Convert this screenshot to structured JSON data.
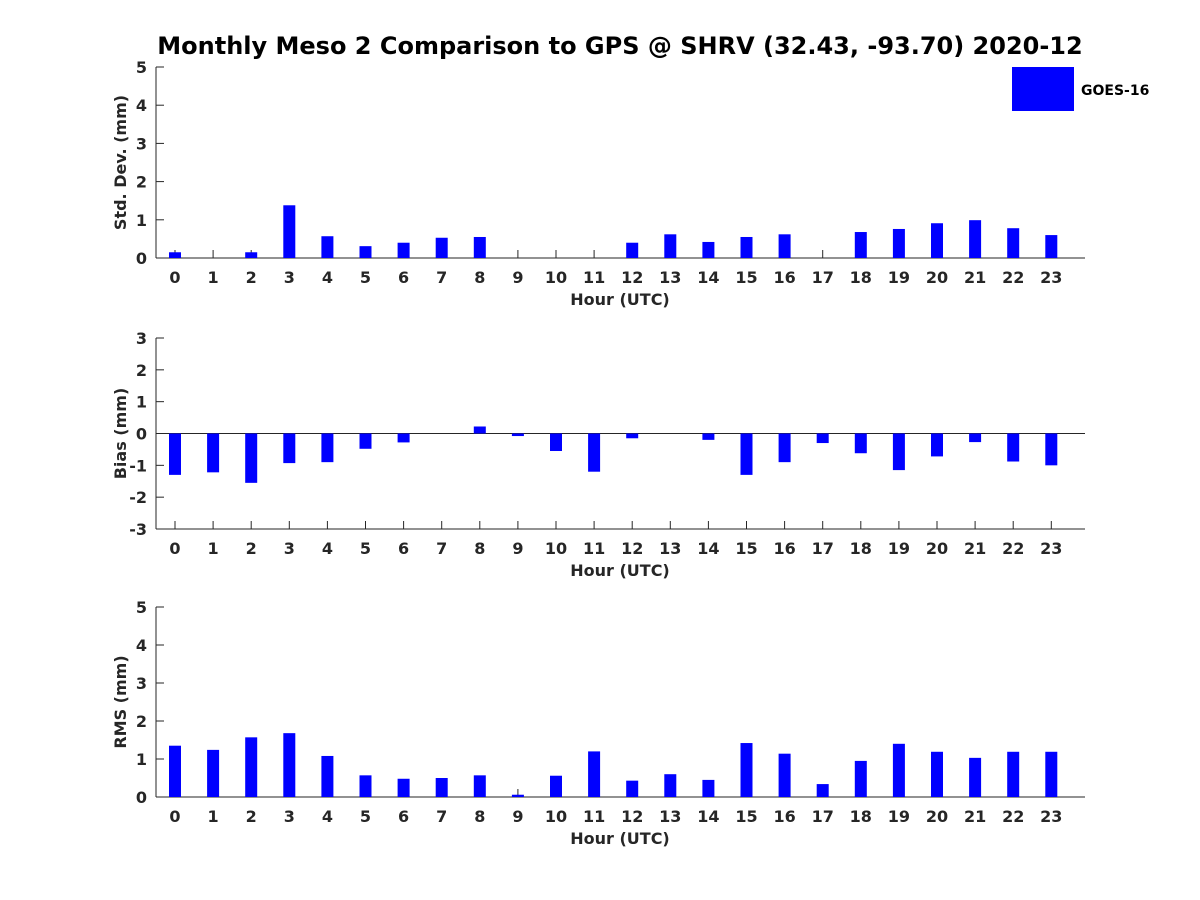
{
  "title": "Monthly Meso 2 Comparison to GPS @ SHRV (32.43, -93.70) 2020-12",
  "legend": {
    "label": "GOES-16",
    "color": "#0000ff",
    "placement": "top-right"
  },
  "chart_data": [
    {
      "type": "bar",
      "xlabel": "Hour (UTC)",
      "ylabel": "Std. Dev. (mm)",
      "ylim": [
        0,
        5
      ],
      "yticks": [
        "0",
        "1",
        "2",
        "3",
        "4",
        "5"
      ],
      "categories": [
        "0",
        "1",
        "2",
        "3",
        "4",
        "5",
        "6",
        "7",
        "8",
        "9",
        "10",
        "11",
        "12",
        "13",
        "14",
        "15",
        "16",
        "17",
        "18",
        "19",
        "20",
        "21",
        "22",
        "23"
      ],
      "series": [
        {
          "name": "GOES-16",
          "color": "#0000ff",
          "values": [
            0.15,
            0,
            0.15,
            1.38,
            0.57,
            0.31,
            0.4,
            0.53,
            0.55,
            0,
            0,
            0,
            0.4,
            0.62,
            0.42,
            0.55,
            0.62,
            0,
            0.68,
            0.76,
            0.91,
            0.99,
            0.78,
            0.6
          ]
        }
      ]
    },
    {
      "type": "bar",
      "xlabel": "Hour (UTC)",
      "ylabel": "Bias (mm)",
      "ylim": [
        -3,
        3
      ],
      "yticks": [
        "-3",
        "-2",
        "-1",
        "0",
        "1",
        "2",
        "3"
      ],
      "categories": [
        "0",
        "1",
        "2",
        "3",
        "4",
        "5",
        "6",
        "7",
        "8",
        "9",
        "10",
        "11",
        "12",
        "13",
        "14",
        "15",
        "16",
        "17",
        "18",
        "19",
        "20",
        "21",
        "22",
        "23"
      ],
      "series": [
        {
          "name": "GOES-16",
          "color": "#0000ff",
          "values": [
            -1.3,
            -1.22,
            -1.55,
            -0.93,
            -0.9,
            -0.48,
            -0.28,
            0,
            0.22,
            -0.08,
            -0.55,
            -1.2,
            -0.15,
            0,
            -0.2,
            -1.3,
            -0.9,
            -0.3,
            -0.62,
            -1.15,
            -0.72,
            -0.27,
            -0.88,
            -1.0
          ]
        }
      ]
    },
    {
      "type": "bar",
      "xlabel": "Hour (UTC)",
      "ylabel": "RMS (mm)",
      "ylim": [
        0,
        5
      ],
      "yticks": [
        "0",
        "1",
        "2",
        "3",
        "4",
        "5"
      ],
      "categories": [
        "0",
        "1",
        "2",
        "3",
        "4",
        "5",
        "6",
        "7",
        "8",
        "9",
        "10",
        "11",
        "12",
        "13",
        "14",
        "15",
        "16",
        "17",
        "18",
        "19",
        "20",
        "21",
        "22",
        "23"
      ],
      "series": [
        {
          "name": "GOES-16",
          "color": "#0000ff",
          "values": [
            1.35,
            1.24,
            1.57,
            1.68,
            1.08,
            0.57,
            0.48,
            0.5,
            0.57,
            0.06,
            0.56,
            1.2,
            0.43,
            0.6,
            0.45,
            1.42,
            1.14,
            0.34,
            0.95,
            1.4,
            1.19,
            1.03,
            1.19,
            1.19
          ]
        }
      ]
    }
  ]
}
